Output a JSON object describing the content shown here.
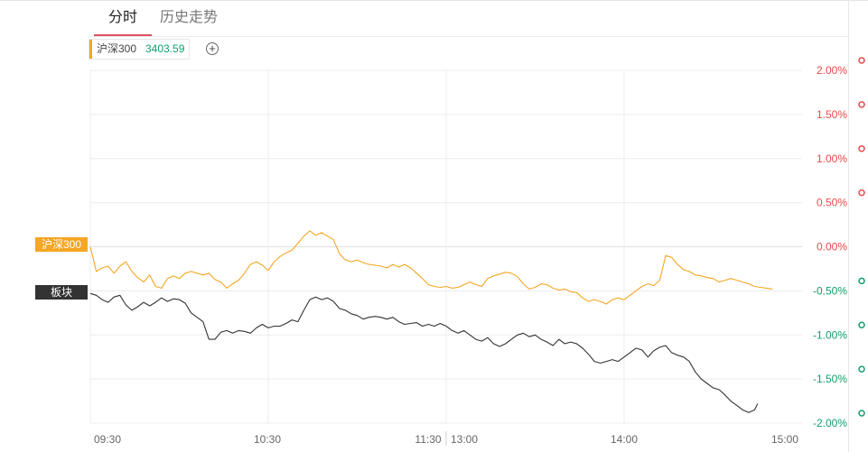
{
  "tabs": [
    {
      "label": "分时"
    },
    {
      "label": "历史走势"
    }
  ],
  "legend": {
    "name": "沪深300",
    "value": "3403.59"
  },
  "colors": {
    "hs300": "#f5a623",
    "sector": "#333333",
    "legend_value": "#10a06a",
    "up": "#e84a4a",
    "down": "#10a06a",
    "grid": "#ececec"
  },
  "series_tags": [
    {
      "label": "沪深300"
    },
    {
      "label": "板块"
    }
  ],
  "chart_data": {
    "type": "line",
    "ylim": [
      -2.0,
      2.2
    ],
    "y_ticks": [
      {
        "value": 2.0,
        "label": "2.00%"
      },
      {
        "value": 1.5,
        "label": "1.50%"
      },
      {
        "value": 1.0,
        "label": "1.00%"
      },
      {
        "value": 0.5,
        "label": "0.50%"
      },
      {
        "value": 0.0,
        "label": "0.00%"
      },
      {
        "value": -0.5,
        "label": "-0.50%"
      },
      {
        "value": -1.0,
        "label": "-1.00%"
      },
      {
        "value": -1.5,
        "label": "-1.50%"
      },
      {
        "value": -2.0,
        "label": "-2.00%"
      }
    ],
    "x_ticks": [
      "09:30",
      "10:30",
      "11:30",
      "13:00",
      "14:00",
      "15:00"
    ],
    "x_tick_times": [
      {
        "label": "09:30",
        "t": 0
      },
      {
        "label": "10:30",
        "t": 60
      },
      {
        "label": "11:30",
        "t": 118
      },
      {
        "label": "13:00",
        "t": 126
      },
      {
        "label": "14:00",
        "t": 180
      },
      {
        "label": "15:00",
        "t": 240
      }
    ],
    "x_range_minutes": [
      0,
      240
    ],
    "grid": true,
    "series": [
      {
        "name": "沪深300",
        "points": [
          [
            0,
            0.0
          ],
          [
            2,
            -0.28
          ],
          [
            4,
            -0.24
          ],
          [
            6,
            -0.22
          ],
          [
            8,
            -0.3
          ],
          [
            10,
            -0.22
          ],
          [
            12,
            -0.17
          ],
          [
            14,
            -0.28
          ],
          [
            16,
            -0.35
          ],
          [
            18,
            -0.4
          ],
          [
            20,
            -0.32
          ],
          [
            22,
            -0.45
          ],
          [
            24,
            -0.47
          ],
          [
            26,
            -0.36
          ],
          [
            28,
            -0.33
          ],
          [
            30,
            -0.36
          ],
          [
            32,
            -0.3
          ],
          [
            34,
            -0.28
          ],
          [
            36,
            -0.3
          ],
          [
            38,
            -0.32
          ],
          [
            40,
            -0.3
          ],
          [
            42,
            -0.37
          ],
          [
            44,
            -0.4
          ],
          [
            46,
            -0.47
          ],
          [
            48,
            -0.42
          ],
          [
            50,
            -0.38
          ],
          [
            52,
            -0.3
          ],
          [
            54,
            -0.2
          ],
          [
            56,
            -0.17
          ],
          [
            58,
            -0.21
          ],
          [
            60,
            -0.27
          ],
          [
            62,
            -0.17
          ],
          [
            64,
            -0.11
          ],
          [
            66,
            -0.07
          ],
          [
            68,
            -0.04
          ],
          [
            70,
            0.04
          ],
          [
            72,
            0.12
          ],
          [
            74,
            0.18
          ],
          [
            76,
            0.13
          ],
          [
            78,
            0.16
          ],
          [
            80,
            0.12
          ],
          [
            82,
            0.08
          ],
          [
            84,
            -0.08
          ],
          [
            86,
            -0.15
          ],
          [
            88,
            -0.17
          ],
          [
            90,
            -0.15
          ],
          [
            92,
            -0.18
          ],
          [
            94,
            -0.2
          ],
          [
            96,
            -0.21
          ],
          [
            98,
            -0.22
          ],
          [
            100,
            -0.24
          ],
          [
            102,
            -0.2
          ],
          [
            104,
            -0.23
          ],
          [
            106,
            -0.2
          ],
          [
            108,
            -0.24
          ],
          [
            110,
            -0.3
          ],
          [
            112,
            -0.36
          ],
          [
            114,
            -0.43
          ],
          [
            116,
            -0.45
          ],
          [
            118,
            -0.46
          ],
          [
            120,
            -0.45
          ],
          [
            122,
            -0.47
          ],
          [
            124,
            -0.46
          ],
          [
            126,
            -0.43
          ],
          [
            128,
            -0.4
          ],
          [
            130,
            -0.43
          ],
          [
            132,
            -0.45
          ],
          [
            134,
            -0.36
          ],
          [
            136,
            -0.33
          ],
          [
            138,
            -0.31
          ],
          [
            140,
            -0.29
          ],
          [
            142,
            -0.3
          ],
          [
            144,
            -0.34
          ],
          [
            146,
            -0.42
          ],
          [
            148,
            -0.48
          ],
          [
            150,
            -0.46
          ],
          [
            152,
            -0.42
          ],
          [
            154,
            -0.43
          ],
          [
            156,
            -0.47
          ],
          [
            158,
            -0.49
          ],
          [
            160,
            -0.48
          ],
          [
            162,
            -0.51
          ],
          [
            164,
            -0.52
          ],
          [
            166,
            -0.58
          ],
          [
            168,
            -0.62
          ],
          [
            170,
            -0.6
          ],
          [
            172,
            -0.62
          ],
          [
            174,
            -0.65
          ],
          [
            176,
            -0.6
          ],
          [
            178,
            -0.58
          ],
          [
            180,
            -0.6
          ],
          [
            182,
            -0.55
          ],
          [
            184,
            -0.5
          ],
          [
            186,
            -0.45
          ],
          [
            188,
            -0.42
          ],
          [
            190,
            -0.44
          ],
          [
            192,
            -0.38
          ],
          [
            194,
            -0.1
          ],
          [
            196,
            -0.12
          ],
          [
            198,
            -0.2
          ],
          [
            200,
            -0.26
          ],
          [
            202,
            -0.28
          ],
          [
            204,
            -0.32
          ],
          [
            206,
            -0.33
          ],
          [
            208,
            -0.35
          ],
          [
            210,
            -0.36
          ],
          [
            212,
            -0.4
          ],
          [
            214,
            -0.38
          ],
          [
            216,
            -0.36
          ],
          [
            218,
            -0.38
          ],
          [
            220,
            -0.4
          ],
          [
            222,
            -0.42
          ],
          [
            224,
            -0.45
          ],
          [
            226,
            -0.46
          ],
          [
            228,
            -0.47
          ],
          [
            230,
            -0.48
          ]
        ]
      },
      {
        "name": "板块",
        "points": [
          [
            0,
            -0.53
          ],
          [
            2,
            -0.55
          ],
          [
            4,
            -0.6
          ],
          [
            6,
            -0.63
          ],
          [
            8,
            -0.57
          ],
          [
            10,
            -0.55
          ],
          [
            12,
            -0.66
          ],
          [
            14,
            -0.72
          ],
          [
            16,
            -0.68
          ],
          [
            18,
            -0.63
          ],
          [
            20,
            -0.67
          ],
          [
            22,
            -0.63
          ],
          [
            24,
            -0.58
          ],
          [
            26,
            -0.62
          ],
          [
            28,
            -0.59
          ],
          [
            30,
            -0.6
          ],
          [
            32,
            -0.64
          ],
          [
            34,
            -0.75
          ],
          [
            36,
            -0.8
          ],
          [
            38,
            -0.85
          ],
          [
            40,
            -1.05
          ],
          [
            42,
            -1.05
          ],
          [
            44,
            -0.97
          ],
          [
            46,
            -0.95
          ],
          [
            48,
            -0.98
          ],
          [
            50,
            -0.95
          ],
          [
            52,
            -0.96
          ],
          [
            54,
            -0.98
          ],
          [
            56,
            -0.92
          ],
          [
            58,
            -0.88
          ],
          [
            60,
            -0.92
          ],
          [
            62,
            -0.9
          ],
          [
            64,
            -0.9
          ],
          [
            66,
            -0.87
          ],
          [
            68,
            -0.83
          ],
          [
            70,
            -0.85
          ],
          [
            72,
            -0.72
          ],
          [
            74,
            -0.6
          ],
          [
            76,
            -0.57
          ],
          [
            78,
            -0.6
          ],
          [
            80,
            -0.58
          ],
          [
            82,
            -0.62
          ],
          [
            84,
            -0.7
          ],
          [
            86,
            -0.72
          ],
          [
            88,
            -0.76
          ],
          [
            90,
            -0.78
          ],
          [
            92,
            -0.82
          ],
          [
            94,
            -0.8
          ],
          [
            96,
            -0.79
          ],
          [
            98,
            -0.8
          ],
          [
            100,
            -0.82
          ],
          [
            102,
            -0.8
          ],
          [
            104,
            -0.85
          ],
          [
            106,
            -0.88
          ],
          [
            108,
            -0.87
          ],
          [
            110,
            -0.86
          ],
          [
            112,
            -0.9
          ],
          [
            114,
            -0.88
          ],
          [
            116,
            -0.9
          ],
          [
            118,
            -0.87
          ],
          [
            120,
            -0.9
          ],
          [
            122,
            -0.95
          ],
          [
            124,
            -0.98
          ],
          [
            126,
            -0.95
          ],
          [
            128,
            -1.0
          ],
          [
            130,
            -1.05
          ],
          [
            132,
            -1.07
          ],
          [
            134,
            -1.03
          ],
          [
            136,
            -1.1
          ],
          [
            138,
            -1.13
          ],
          [
            140,
            -1.1
          ],
          [
            142,
            -1.05
          ],
          [
            144,
            -1.0
          ],
          [
            146,
            -0.98
          ],
          [
            148,
            -1.02
          ],
          [
            150,
            -1.0
          ],
          [
            152,
            -1.05
          ],
          [
            154,
            -1.08
          ],
          [
            156,
            -1.12
          ],
          [
            158,
            -1.05
          ],
          [
            160,
            -1.1
          ],
          [
            162,
            -1.08
          ],
          [
            164,
            -1.1
          ],
          [
            166,
            -1.15
          ],
          [
            168,
            -1.22
          ],
          [
            170,
            -1.3
          ],
          [
            172,
            -1.32
          ],
          [
            174,
            -1.3
          ],
          [
            176,
            -1.28
          ],
          [
            178,
            -1.3
          ],
          [
            180,
            -1.25
          ],
          [
            182,
            -1.2
          ],
          [
            184,
            -1.15
          ],
          [
            186,
            -1.17
          ],
          [
            188,
            -1.25
          ],
          [
            190,
            -1.18
          ],
          [
            192,
            -1.14
          ],
          [
            194,
            -1.12
          ],
          [
            196,
            -1.2
          ],
          [
            198,
            -1.23
          ],
          [
            200,
            -1.25
          ],
          [
            202,
            -1.3
          ],
          [
            204,
            -1.42
          ],
          [
            206,
            -1.5
          ],
          [
            208,
            -1.55
          ],
          [
            210,
            -1.6
          ],
          [
            212,
            -1.62
          ],
          [
            214,
            -1.68
          ],
          [
            216,
            -1.75
          ],
          [
            218,
            -1.8
          ],
          [
            220,
            -1.85
          ],
          [
            222,
            -1.88
          ],
          [
            224,
            -1.85
          ],
          [
            225,
            -1.78
          ]
        ]
      }
    ]
  }
}
